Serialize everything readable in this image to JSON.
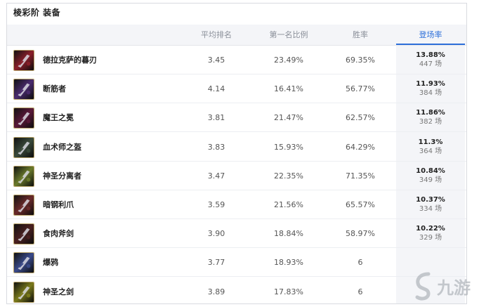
{
  "title": "棱彩阶 装备",
  "columns": {
    "avg_rank": "平均排名",
    "first_rate": "第一名比例",
    "win_rate": "胜率",
    "pick_rate": "登场率"
  },
  "rows": [
    {
      "name": "德拉克萨的暮刃",
      "avg_rank": "3.45",
      "first_rate": "23.49%",
      "win_rate": "69.35%",
      "pick_rate": "13.88%",
      "games": "447 场",
      "icon": "dusk-blade-icon",
      "color": "#8a1f2a"
    },
    {
      "name": "断筋者",
      "avg_rank": "4.14",
      "first_rate": "16.41%",
      "win_rate": "56.77%",
      "pick_rate": "11.93%",
      "games": "384 场",
      "icon": "hamstringer-icon",
      "color": "#4a2a6e"
    },
    {
      "name": "魔王之冕",
      "avg_rank": "3.81",
      "first_rate": "21.47%",
      "win_rate": "62.57%",
      "pick_rate": "11.86%",
      "games": "382 场",
      "icon": "demon-crown-icon",
      "color": "#5a1838"
    },
    {
      "name": "血术师之盔",
      "avg_rank": "3.83",
      "first_rate": "15.93%",
      "win_rate": "64.29%",
      "pick_rate": "11.3%",
      "games": "364 场",
      "icon": "bloodmage-helm-icon",
      "color": "#3a4a3a"
    },
    {
      "name": "神圣分离者",
      "avg_rank": "3.47",
      "first_rate": "22.35%",
      "win_rate": "71.35%",
      "pick_rate": "10.84%",
      "games": "349 场",
      "icon": "divine-sunderer-icon",
      "color": "#6a7a2a"
    },
    {
      "name": "暗钢利爪",
      "avg_rank": "3.59",
      "first_rate": "21.56%",
      "win_rate": "65.57%",
      "pick_rate": "10.37%",
      "games": "334 场",
      "icon": "darksteel-talons-icon",
      "color": "#6a2a2a"
    },
    {
      "name": "食肉斧剑",
      "avg_rank": "3.90",
      "first_rate": "18.84%",
      "win_rate": "58.97%",
      "pick_rate": "10.22%",
      "games": "329 场",
      "icon": "carnivore-axe-icon",
      "color": "#4a2020"
    },
    {
      "name": "爆鸦",
      "avg_rank": "3.77",
      "first_rate": "18.93%",
      "win_rate": "6",
      "pick_rate": "",
      "games": "",
      "icon": "blast-raven-icon",
      "color": "#3a4a8a"
    },
    {
      "name": "神圣之剑",
      "avg_rank": "3.89",
      "first_rate": "17.83%",
      "win_rate": "6",
      "pick_rate": "",
      "games": "",
      "icon": "divine-sword-icon",
      "color": "#7a7a1a"
    }
  ],
  "watermark": {
    "text": "九游",
    "icon": "jiuyou-logo-icon"
  }
}
